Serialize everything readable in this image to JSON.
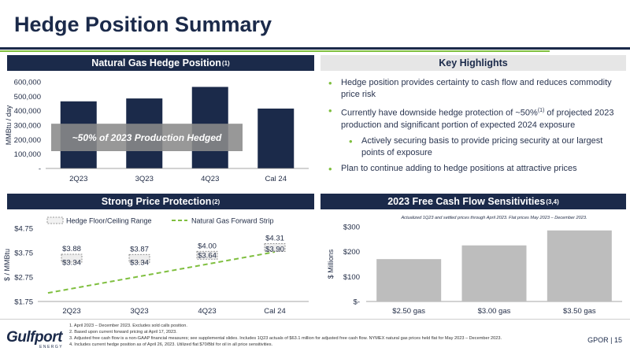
{
  "page": {
    "title": "Hedge Position Summary",
    "page_label": "GPOR | 15"
  },
  "logo": {
    "name": "Gulfport",
    "sub": "ENERGY"
  },
  "panels": {
    "gas_hedge": {
      "title": "Natural Gas Hedge Position",
      "sup": "(1)"
    },
    "highlights": {
      "title": "Key Highlights"
    },
    "price": {
      "title": "Strong Price Protection",
      "sup": "(2)"
    },
    "fcf": {
      "title": "2023 Free Cash Flow Sensitivities",
      "sup": "(3,4)"
    }
  },
  "highlights": [
    {
      "level": 1,
      "text": "Hedge position provides certainty to cash flow and reduces commodity price risk"
    },
    {
      "level": 1,
      "text_a": "Currently have downside hedge protection of ~50%",
      "sup": "(1)",
      "text_b": " of projected 2023 production and significant portion of expected 2024 exposure"
    },
    {
      "level": 2,
      "text": "Actively securing basis to provide pricing security at our largest points of exposure"
    },
    {
      "level": 1,
      "text": "Plan to continue adding to hedge positions at attractive prices"
    }
  ],
  "footnotes": [
    "1.    April 2023 – December 2023. Excludes sold calls position.",
    "2.    Based upon current forward pricing at April 17, 2023.",
    "3.    Adjusted free cash flow is a non-GAAP financial measures; see supplemental slides. Includes 1Q23 actuals of $63.1 million for adjusted free cash flow. NYMEX natural gas prices held flat for May 2023 – December 2023.",
    "4.    Includes current hedge position as of April 26, 2023. Utilized flat $70/Bbl for oil in all price sensitivities."
  ],
  "colors": {
    "navy": "#1b2a4a",
    "green": "#7fbf3f",
    "gray_bar": "#bdbdbd"
  },
  "chart_data": [
    {
      "type": "bar",
      "ylabel": "MMBtu / day",
      "categories": [
        "2Q23",
        "3Q23",
        "4Q23",
        "Cal 24"
      ],
      "values": [
        465000,
        485000,
        565000,
        415000
      ],
      "ylim": [
        0,
        600000
      ],
      "yticks": [
        0,
        100000,
        200000,
        300000,
        400000,
        500000,
        600000
      ],
      "ytick_labels": [
        "-",
        "100,000",
        "200,000",
        "300,000",
        "400,000",
        "500,000",
        "600,000"
      ],
      "annotation": "~50% of 2023 Production Hedged",
      "bar_color": "#1b2a4a"
    },
    {
      "type": "line",
      "ylabel": "$ / MMBtu",
      "categories": [
        "2Q23",
        "3Q23",
        "4Q23",
        "Cal 24"
      ],
      "ylim": [
        1.75,
        4.75
      ],
      "yticks": [
        1.75,
        2.75,
        3.75,
        4.75
      ],
      "ytick_labels": [
        "$1.75",
        "$2.75",
        "$3.75",
        "$4.75"
      ],
      "legend": [
        "Hedge Floor/Ceiling Range",
        "Natural Gas Forward Strip"
      ],
      "hedge_range": [
        {
          "floor": 3.34,
          "ceiling": 3.88,
          "floor_label": "$3.34",
          "ceiling_label": "$3.88"
        },
        {
          "floor": 3.34,
          "ceiling": 3.87,
          "floor_label": "$3.34",
          "ceiling_label": "$3.87"
        },
        {
          "floor": 3.64,
          "ceiling": 4.0,
          "floor_label": "$3.64",
          "ceiling_label": "$4.00"
        },
        {
          "floor": 3.9,
          "ceiling": 4.31,
          "floor_label": "$3.90",
          "ceiling_label": "$4.31"
        }
      ],
      "forward_strip": {
        "x": [
          -0.35,
          3.0
        ],
        "y": [
          2.1,
          3.78
        ]
      }
    },
    {
      "type": "bar",
      "ylabel": "$ Millions",
      "note": "Actualized 1Q23 and settled prices through April 2023. Flat prices May 2023 – December 2023.",
      "categories": [
        "$2.50 gas",
        "$3.00 gas",
        "$3.50 gas"
      ],
      "values": [
        170,
        225,
        285
      ],
      "ylim": [
        0,
        300
      ],
      "yticks": [
        0,
        100,
        200,
        300
      ],
      "ytick_labels": [
        "$-",
        "$100",
        "$200",
        "$300"
      ],
      "bar_color": "#bdbdbd"
    }
  ]
}
